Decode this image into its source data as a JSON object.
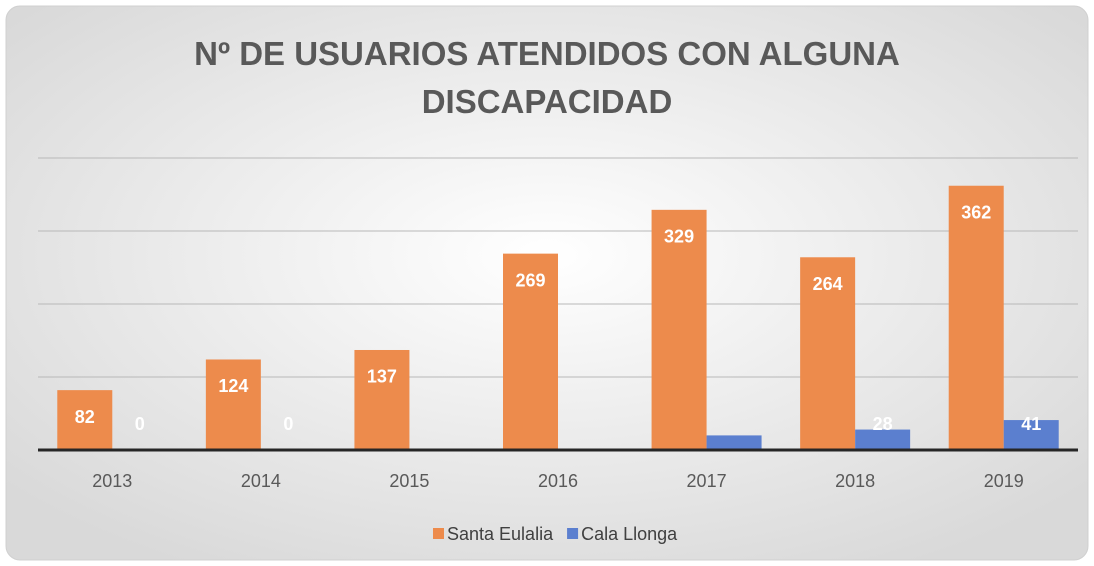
{
  "chart_data": {
    "type": "bar",
    "title": "Nº DE USUARIOS ATENDIDOS CON ALGUNA DISCAPACIDAD",
    "categories": [
      "2013",
      "2014",
      "2015",
      "2016",
      "2017",
      "2018",
      "2019"
    ],
    "series": [
      {
        "name": "Santa Eulalia",
        "color": "#ed8b4c",
        "values": [
          82,
          124,
          137,
          269,
          329,
          264,
          362
        ]
      },
      {
        "name": "Cala Llonga",
        "color": "#5b7fcf",
        "values": [
          0,
          0,
          null,
          null,
          20,
          28,
          41
        ],
        "value_labels": [
          "0",
          "0",
          null,
          null,
          null,
          "28",
          "41"
        ]
      }
    ],
    "ylim": [
      0,
      400
    ],
    "yticks": [
      100,
      200,
      300,
      400
    ],
    "grid": true,
    "legend": "bottom"
  }
}
